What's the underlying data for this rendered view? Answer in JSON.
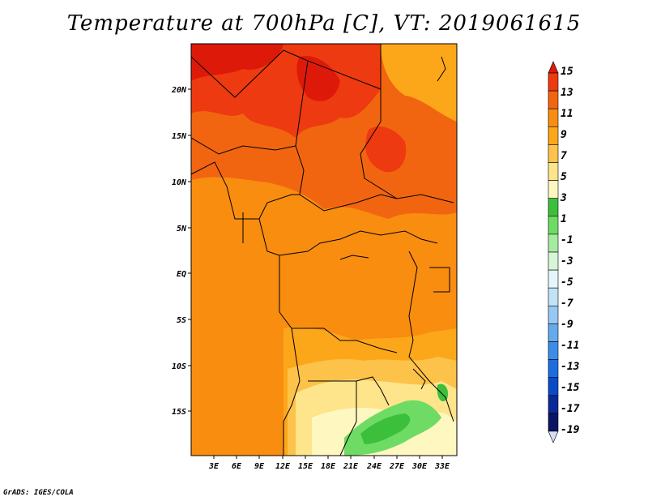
{
  "title": "Temperature at 700hPa [C], VT: 2019061615",
  "credit": "GrADS: IGES/COLA",
  "map": {
    "lat_labels": [
      "20N",
      "15N",
      "10N",
      "5N",
      "EQ",
      "5S",
      "10S",
      "15S"
    ],
    "lon_labels": [
      "3E",
      "6E",
      "9E",
      "12E",
      "15E",
      "18E",
      "21E",
      "24E",
      "27E",
      "30E",
      "33E"
    ]
  },
  "colorbar": {
    "labels": [
      "15",
      "13",
      "11",
      "9",
      "7",
      "5",
      "3",
      "1",
      "-1",
      "-3",
      "-5",
      "-7",
      "-9",
      "-11",
      "-13",
      "-15",
      "-17",
      "-19"
    ],
    "colors": [
      "#dd1a0a",
      "#ee3a10",
      "#f26510",
      "#f88d10",
      "#fca71a",
      "#fdc24a",
      "#fee48a",
      "#fef7bf",
      "#3cc03c",
      "#6edc64",
      "#a5eba0",
      "#d8f6d6",
      "#e6f4fb",
      "#c2e2f8",
      "#96c8f2",
      "#64aaec",
      "#3c8cea",
      "#1c6ee0",
      "#0a4ac8",
      "#0a2898",
      "#0a1664",
      "#d8dcf4"
    ]
  }
}
